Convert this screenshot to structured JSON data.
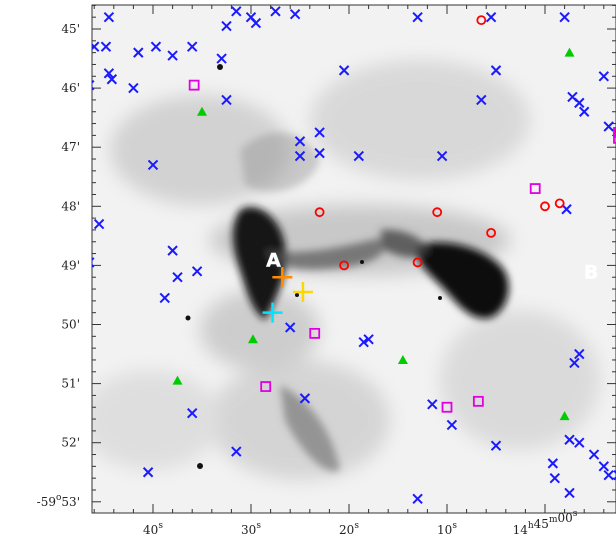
{
  "chart_data": {
    "type": "scatter",
    "title": "",
    "xlabel": "",
    "ylabel": "",
    "x_ticks": [
      {
        "sec": 40,
        "label": "40",
        "sup": "s"
      },
      {
        "sec": 30,
        "label": "30",
        "sup": "s"
      },
      {
        "sec": 20,
        "label": "20",
        "sup": "s"
      },
      {
        "sec": 10,
        "label": "10",
        "sup": "s"
      },
      {
        "sec": 0,
        "label": "14",
        "sup": "h",
        "label2": "45",
        "sup2": "m",
        "label3": "00",
        "sup3": "s"
      },
      {
        "sec": -10,
        "label": "50",
        "sup": "s"
      },
      {
        "sec": -20,
        "label": "40",
        "sup": ""
      }
    ],
    "y_ticks": [
      {
        "arcmin": 45,
        "label": "45'"
      },
      {
        "arcmin": 46,
        "label": "46'"
      },
      {
        "arcmin": 47,
        "label": "47'"
      },
      {
        "arcmin": 48,
        "label": "48'"
      },
      {
        "arcmin": 49,
        "label": "49'"
      },
      {
        "arcmin": 50,
        "label": "50'"
      },
      {
        "arcmin": 51,
        "label": "51'"
      },
      {
        "arcmin": 52,
        "label": "52'"
      },
      {
        "arcmin": 53,
        "label": "-59",
        "sup": "o",
        "label2": "53'"
      }
    ],
    "xlim": [
      47,
      -23
    ],
    "ylim": [
      53.25,
      44.65
    ],
    "labels": [
      {
        "text": "A",
        "sec": 27.7,
        "arcmin": 48.9
      },
      {
        "text": "B",
        "sec": -4.7,
        "arcmin": 49.1
      }
    ],
    "series": [
      {
        "marker": "x",
        "color": "#1a1aff",
        "points": [
          [
            44.5,
            44.8
          ],
          [
            31.5,
            44.7
          ],
          [
            30.0,
            44.8
          ],
          [
            29.5,
            44.9
          ],
          [
            27.5,
            44.7
          ],
          [
            25.5,
            44.75
          ],
          [
            32.5,
            44.95
          ],
          [
            13.0,
            44.8
          ],
          [
            5.5,
            44.8
          ],
          [
            -2.0,
            44.8
          ],
          [
            -12.5,
            44.8
          ],
          [
            -13.0,
            44.85
          ],
          [
            46.0,
            45.3
          ],
          [
            44.8,
            45.3
          ],
          [
            41.5,
            45.4
          ],
          [
            39.7,
            45.3
          ],
          [
            38.0,
            45.45
          ],
          [
            36.0,
            45.3
          ],
          [
            33.0,
            45.5
          ],
          [
            46.8,
            45.55
          ],
          [
            44.5,
            45.75
          ],
          [
            44.2,
            45.85
          ],
          [
            46.5,
            45.95
          ],
          [
            42.0,
            46.0
          ],
          [
            20.5,
            45.7
          ],
          [
            5.0,
            45.7
          ],
          [
            -6.0,
            45.8
          ],
          [
            -17.5,
            45.6
          ],
          [
            -22.0,
            45.35
          ],
          [
            -20.0,
            45.8
          ],
          [
            -14.5,
            45.95
          ],
          [
            -13.0,
            46.15
          ],
          [
            -9.0,
            46.25
          ],
          [
            -10.0,
            46.4
          ],
          [
            32.5,
            46.2
          ],
          [
            -2.8,
            46.15
          ],
          [
            -3.5,
            46.25
          ],
          [
            6.5,
            46.2
          ],
          [
            -4.0,
            46.4
          ],
          [
            -6.5,
            46.65
          ],
          [
            -11.0,
            46.6
          ],
          [
            -16.0,
            46.9
          ],
          [
            -22.5,
            46.9
          ],
          [
            25.0,
            46.9
          ],
          [
            23.0,
            46.75
          ],
          [
            23.0,
            47.1
          ],
          [
            19.0,
            47.15
          ],
          [
            10.5,
            47.15
          ],
          [
            25.0,
            47.15
          ],
          [
            40.0,
            47.3
          ],
          [
            46.8,
            47.6
          ],
          [
            45.5,
            48.3
          ],
          [
            38.0,
            48.75
          ],
          [
            37.5,
            49.2
          ],
          [
            35.5,
            49.1
          ],
          [
            38.8,
            49.55
          ],
          [
            46.5,
            48.95
          ],
          [
            -2.2,
            48.05
          ],
          [
            -15.5,
            48.9
          ],
          [
            26.0,
            50.05
          ],
          [
            18.5,
            50.3
          ],
          [
            18.0,
            50.25
          ],
          [
            -3.5,
            50.5
          ],
          [
            -3.0,
            50.65
          ],
          [
            -15.8,
            50.6
          ],
          [
            -16.2,
            50.8
          ],
          [
            -10.5,
            50.9
          ],
          [
            -15.0,
            51.5
          ],
          [
            -18.5,
            51.8
          ],
          [
            -20.5,
            51.65
          ],
          [
            -10.5,
            51.25
          ],
          [
            -8.5,
            51.6
          ],
          [
            -8.5,
            51.85
          ],
          [
            -2.5,
            51.95
          ],
          [
            -3.5,
            52.0
          ],
          [
            -5.0,
            52.2
          ],
          [
            -12.5,
            52.15
          ],
          [
            -14.5,
            52.1
          ],
          [
            -16.0,
            52.4
          ],
          [
            -18.5,
            52.6
          ],
          [
            -21.5,
            52.45
          ],
          [
            -22.5,
            52.9
          ],
          [
            -12.0,
            52.9
          ],
          [
            -2.5,
            52.85
          ],
          [
            -8.0,
            52.6
          ],
          [
            -7.5,
            52.55
          ],
          [
            -6.0,
            52.4
          ],
          [
            -6.5,
            52.55
          ],
          [
            -0.8,
            52.35
          ],
          [
            -1.0,
            52.6
          ],
          [
            24.5,
            51.25
          ],
          [
            11.5,
            51.35
          ],
          [
            9.5,
            51.7
          ],
          [
            5.0,
            52.05
          ],
          [
            36.0,
            51.5
          ],
          [
            31.5,
            52.15
          ],
          [
            40.5,
            52.5
          ],
          [
            13.0,
            52.95
          ]
        ]
      },
      {
        "marker": "circle",
        "color": "#ff0000",
        "points": [
          [
            6.5,
            44.85
          ],
          [
            -19.5,
            44.95
          ],
          [
            -22.5,
            46.25
          ],
          [
            -11.0,
            47.15
          ],
          [
            -7.5,
            46.75
          ],
          [
            -7.8,
            47.65
          ],
          [
            -1.5,
            47.95
          ],
          [
            0.0,
            48.0
          ],
          [
            5.5,
            48.45
          ],
          [
            11.0,
            48.1
          ],
          [
            23.0,
            48.1
          ],
          [
            20.5,
            49.0
          ],
          [
            13.0,
            48.95
          ],
          [
            -15.5,
            52.45
          ]
        ]
      },
      {
        "marker": "square",
        "color": "#e000e0",
        "points": [
          [
            35.8,
            45.95
          ],
          [
            -22.5,
            45.4
          ],
          [
            -7.5,
            46.85
          ],
          [
            -7.5,
            46.75
          ],
          [
            1.0,
            47.7
          ],
          [
            -16.5,
            47.95
          ],
          [
            -19.0,
            48.3
          ],
          [
            -11.0,
            48.65
          ],
          [
            23.5,
            50.15
          ],
          [
            28.5,
            51.05
          ],
          [
            10.0,
            51.4
          ],
          [
            6.8,
            51.3
          ]
        ]
      },
      {
        "marker": "triangle",
        "color": "#00cc00",
        "points": [
          [
            -2.5,
            45.4
          ],
          [
            -20.0,
            46.3
          ],
          [
            -13.0,
            46.6
          ],
          [
            35.0,
            46.4
          ],
          [
            29.8,
            50.25
          ],
          [
            14.5,
            50.6
          ],
          [
            37.5,
            50.95
          ],
          [
            -8.5,
            51.1
          ],
          [
            -18.0,
            51.0
          ],
          [
            -2.0,
            51.55
          ],
          [
            -17.0,
            51.85
          ]
        ]
      },
      {
        "marker": "plus",
        "color": "#ff8c00",
        "points": [
          [
            26.8,
            49.2
          ]
        ]
      },
      {
        "marker": "plus",
        "color": "#ffd700",
        "points": [
          [
            24.7,
            49.45
          ]
        ]
      },
      {
        "marker": "plus",
        "color": "#00e5ff",
        "points": [
          [
            27.8,
            49.8
          ]
        ]
      }
    ]
  }
}
